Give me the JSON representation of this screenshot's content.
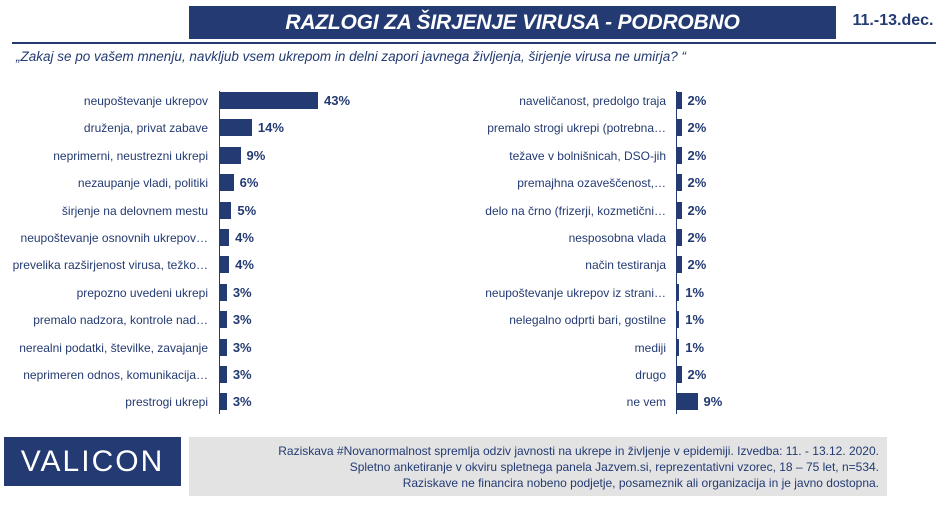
{
  "header": {
    "title": "RAZLOGI ZA ŠIRJENJE VIRUSA - PODROBNO",
    "date": "11.-13.dec."
  },
  "question": "„Zakaj se po vašem mnenju, navkljub vsem ukrepom in delni zapori javnega življenja, širjenje virusa ne umirja? “",
  "chart_data": [
    {
      "type": "bar",
      "orientation": "horizontal",
      "title": "",
      "xlabel": "",
      "ylabel": "",
      "value_format": "percent",
      "categories": [
        "neupoštevanje ukrepov",
        "druženja, privat zabave",
        "neprimerni, neustrezni ukrepi",
        "nezaupanje vladi, politiki",
        "širjenje na delovnem mestu",
        "neupoštevanje osnovnih ukrepov…",
        "prevelika razširjenost virusa, težko…",
        "prepozno uvedeni ukrepi",
        "premalo nadzora, kontrole nad…",
        "nerealni podatki, številke, zavajanje",
        "neprimeren odnos, komunikacija…",
        "prestrogi ukrepi"
      ],
      "values": [
        43,
        14,
        9,
        6,
        5,
        4,
        4,
        3,
        3,
        3,
        3,
        3
      ],
      "labels": [
        "43%",
        "14%",
        "9%",
        "6%",
        "5%",
        "4%",
        "4%",
        "3%",
        "3%",
        "3%",
        "3%",
        "3%"
      ]
    },
    {
      "type": "bar",
      "orientation": "horizontal",
      "title": "",
      "xlabel": "",
      "ylabel": "",
      "value_format": "percent",
      "categories": [
        "naveličanost, predolgo traja",
        "premalo strogi ukrepi (potrebna…",
        "težave v bolnišnicah, DSO-jih",
        "premajhna ozaveščenost,…",
        "delo na črno (frizerji, kozmetični…",
        "nesposobna vlada",
        "način testiranja",
        "neupoštevanje ukrepov iz strani…",
        "nelegalno odprti bari, gostilne",
        "mediji",
        "drugo",
        "ne vem"
      ],
      "values": [
        2,
        2,
        2,
        2,
        2,
        2,
        2,
        1,
        1,
        1,
        2,
        9
      ],
      "labels": [
        "2%",
        "2%",
        "2%",
        "2%",
        "2%",
        "2%",
        "2%",
        "1%",
        "1%",
        "1%",
        "2%",
        "9%"
      ]
    }
  ],
  "footer": {
    "logo": "VALICON",
    "lines": [
      "Raziskava #Novanormalnost spremlja odziv javnosti na ukrepe in življenje v epidemiji. Izvedba: 11. - 13.12. 2020.",
      "Spletno anketiranje v okviru spletnega panela Jazvem.si, reprezentativni vzorec, 18 – 75 let, n=534.",
      "Raziskave ne financira nobeno podjetje, posameznik ali organizacija in je javno dostopna."
    ]
  },
  "colors": {
    "primary": "#233a72",
    "footer_bg": "#e3e3e3",
    "background": "#ffffff"
  }
}
